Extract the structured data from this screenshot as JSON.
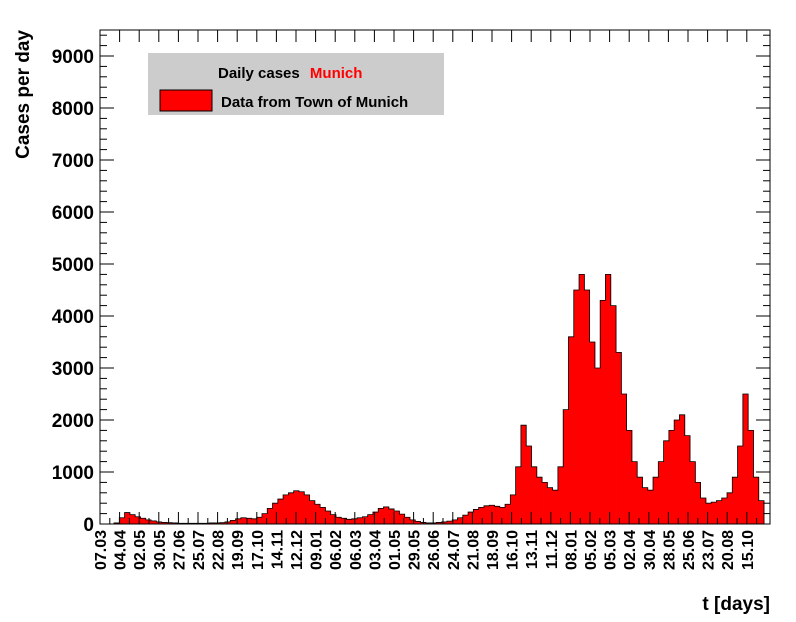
{
  "chart_data": {
    "type": "bar",
    "xlabel": "t [days]",
    "ylabel": "Cases per day",
    "ylim": [
      0,
      9500
    ],
    "yticks": [
      0,
      1000,
      2000,
      3000,
      4000,
      5000,
      6000,
      7000,
      8000,
      9000
    ],
    "x_tick_labels": [
      "07.03",
      "04.04",
      "02.05",
      "30.05",
      "27.06",
      "25.07",
      "22.08",
      "19.09",
      "17.10",
      "14.11",
      "12.12",
      "09.01",
      "06.02",
      "06.03",
      "03.04",
      "01.05",
      "29.05",
      "26.06",
      "24.07",
      "21.08",
      "18.09",
      "16.10",
      "13.11",
      "11.12",
      "08.01",
      "05.02",
      "05.03",
      "02.04",
      "30.04",
      "28.05",
      "25.06",
      "23.07",
      "20.08",
      "15.10"
    ],
    "grid": false,
    "legend": {
      "title": "Daily cases",
      "title_highlight": "Munich",
      "highlight_color": "#ff0000",
      "entries": [
        "Data from Town of Munich"
      ],
      "position": "top-left"
    },
    "colors": {
      "fill": "#ff0000",
      "line": "#000000",
      "legend_bg": "#cccccc"
    },
    "series": [
      {
        "name": "Data from Town of Munich",
        "bin_days": 7,
        "values": [
          20,
          120,
          220,
          180,
          140,
          110,
          80,
          60,
          40,
          30,
          25,
          20,
          15,
          15,
          15,
          15,
          15,
          15,
          20,
          20,
          25,
          40,
          70,
          100,
          120,
          110,
          100,
          130,
          200,
          300,
          400,
          480,
          560,
          600,
          640,
          620,
          560,
          450,
          380,
          320,
          250,
          180,
          130,
          110,
          90,
          100,
          120,
          140,
          180,
          230,
          300,
          330,
          290,
          250,
          190,
          130,
          80,
          50,
          30,
          20,
          20,
          30,
          40,
          55,
          80,
          120,
          170,
          230,
          280,
          320,
          350,
          360,
          340,
          320,
          380,
          560,
          1100,
          1900,
          1500,
          1100,
          900,
          800,
          700,
          650,
          1100,
          2200,
          3600,
          4500,
          4800,
          4500,
          3500,
          3000,
          4300,
          4800,
          4200,
          3300,
          2500,
          1800,
          1200,
          900,
          700,
          650,
          900,
          1200,
          1600,
          1800,
          2000,
          2100,
          1700,
          1200,
          800,
          500,
          400,
          420,
          450,
          500,
          600,
          900,
          1500,
          2500,
          1800,
          900,
          450
        ]
      }
    ]
  }
}
